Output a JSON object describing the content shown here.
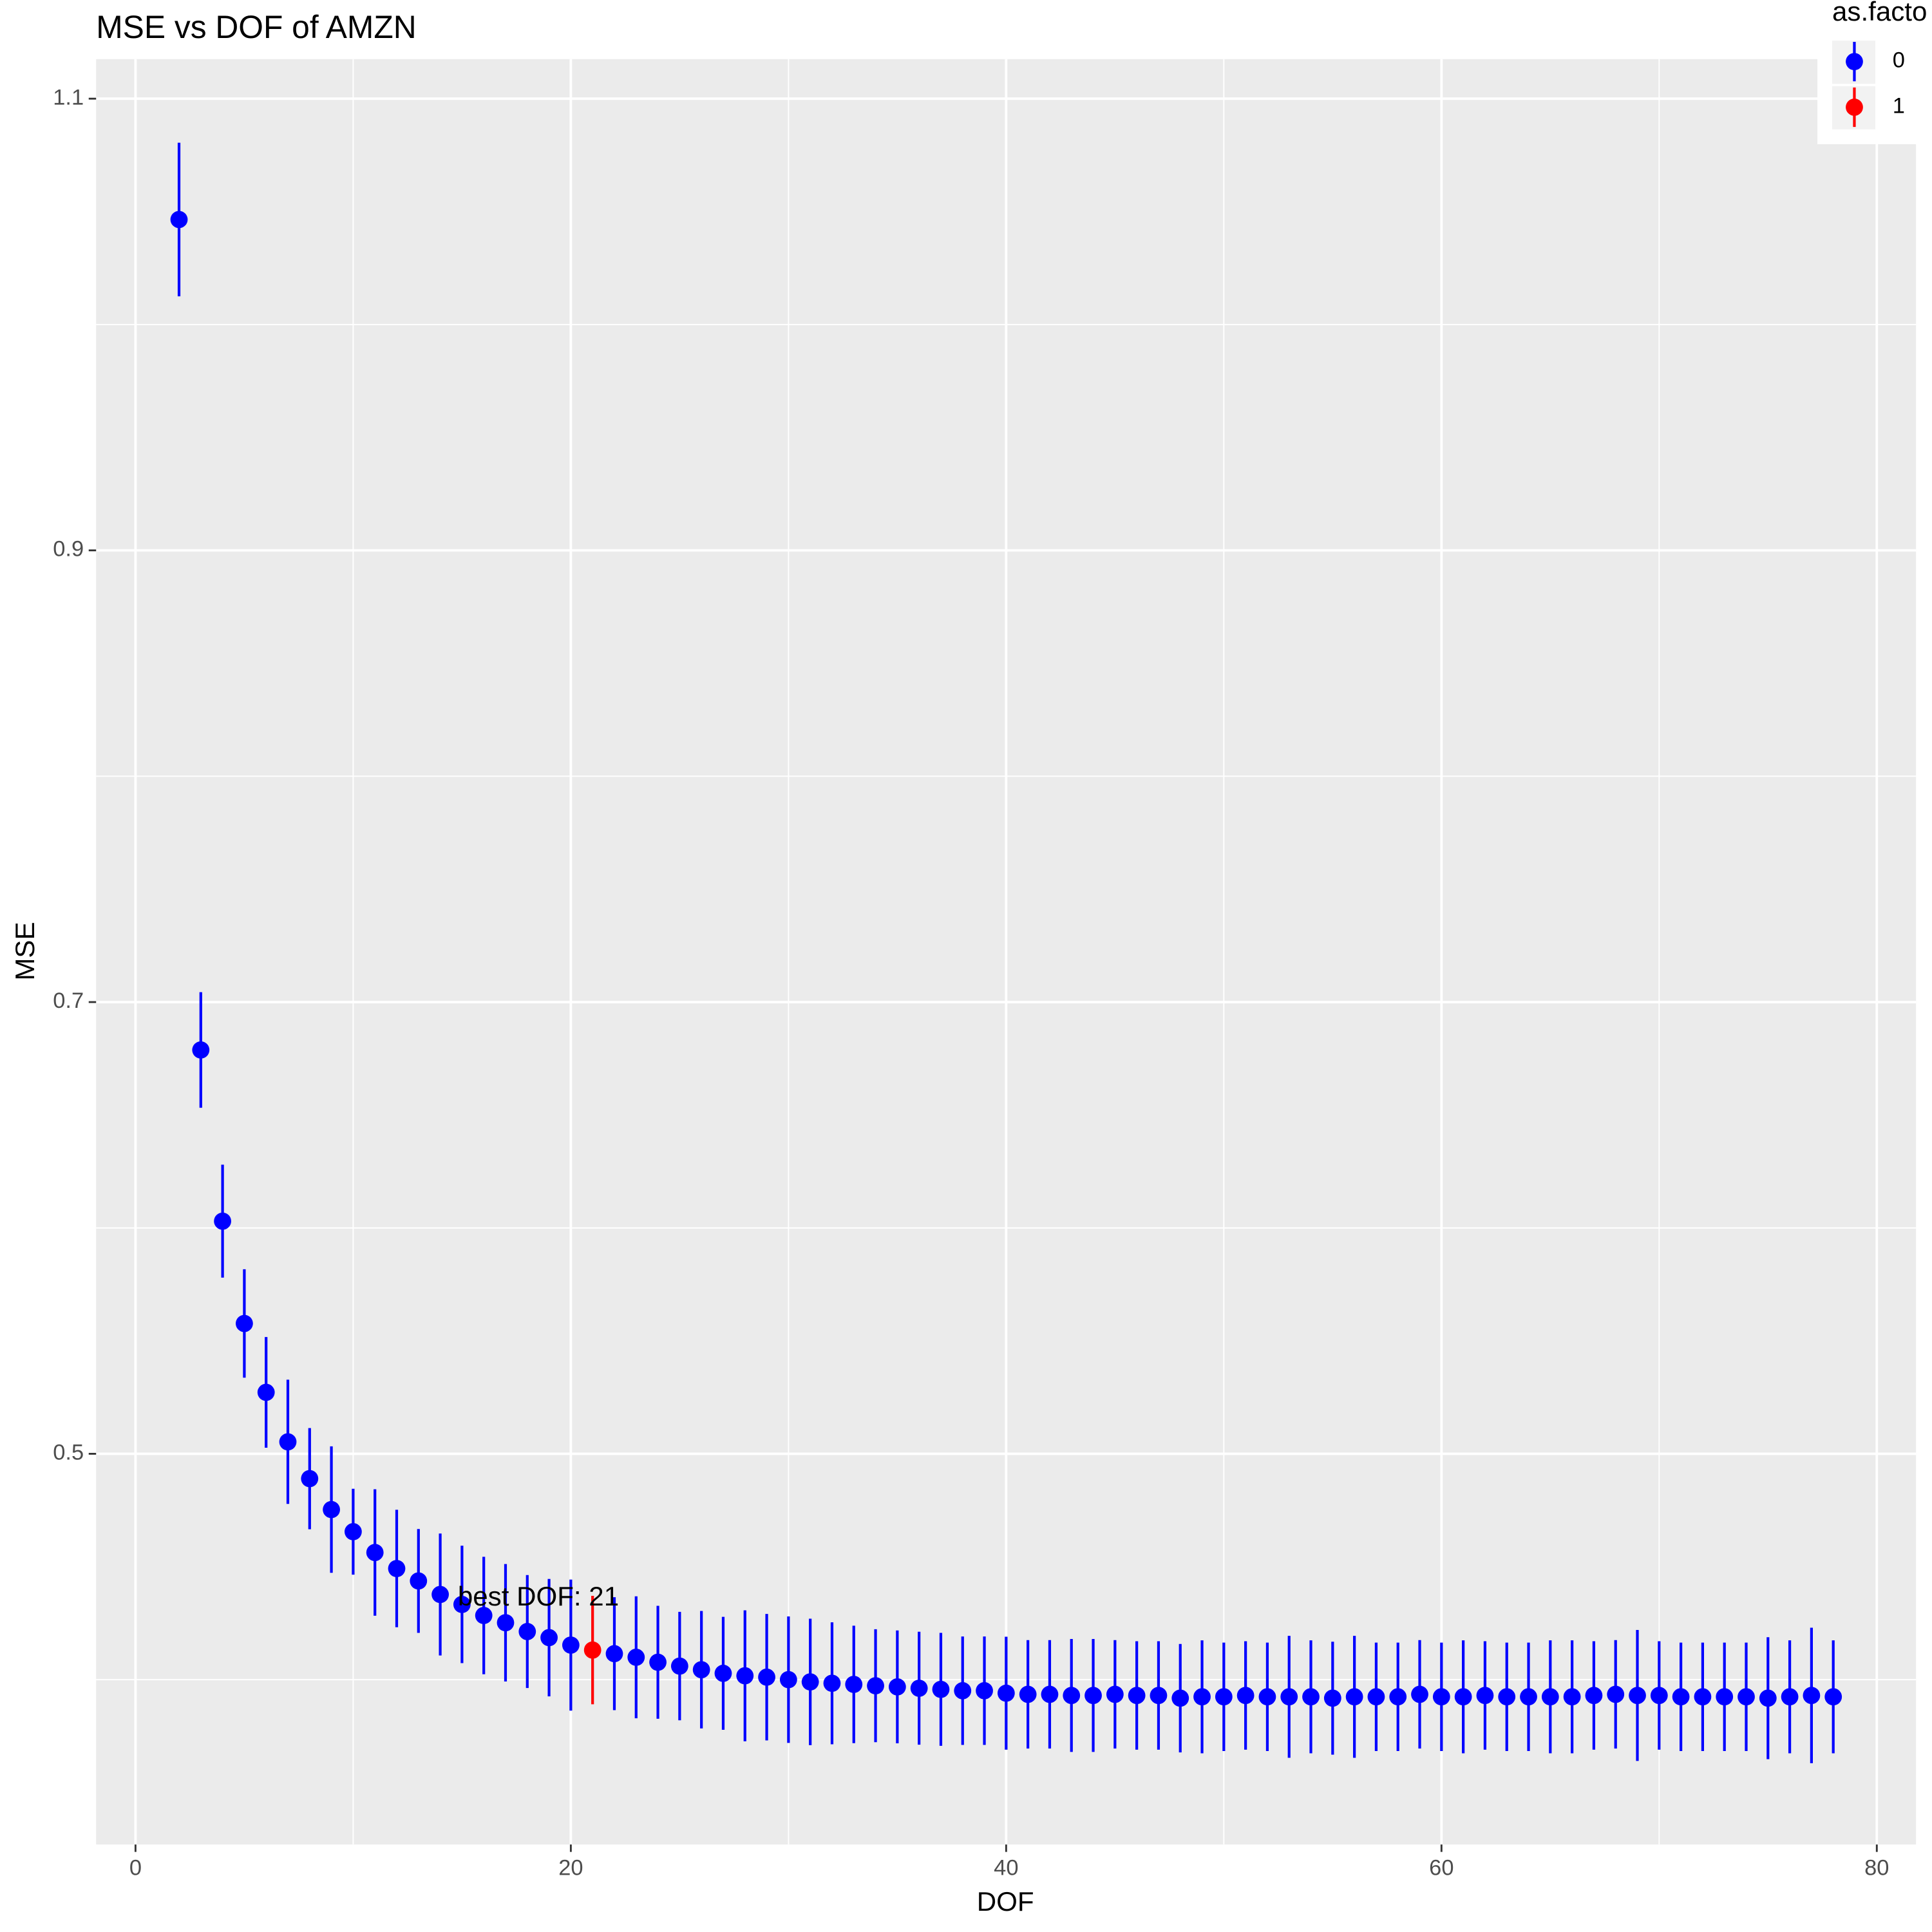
{
  "chart_data": {
    "type": "errorbar-scatter",
    "title": "MSE vs DOF of  AMZN",
    "x_label": "DOF",
    "y_label": "MSE",
    "legend_title": "as.facto",
    "annotation": "best DOF: 21",
    "xlim": [
      -1.81,
      81.8
    ],
    "ylim": [
      0.327,
      1.1175
    ],
    "xticks": [
      0,
      20,
      40,
      60,
      80
    ],
    "yticks": [
      0.5,
      0.7,
      0.9,
      1.1
    ],
    "grid": true,
    "series": [
      {
        "name": "0",
        "color": "#0000ff",
        "x": [
          2,
          3,
          4,
          5,
          6,
          7,
          8,
          9,
          10,
          11,
          12,
          13,
          14,
          15,
          16,
          17,
          18,
          19,
          20,
          22,
          23,
          24,
          25,
          26,
          27,
          28,
          29,
          30,
          31,
          32,
          33,
          34,
          35,
          36,
          37,
          38,
          39,
          40,
          41,
          42,
          43,
          44,
          45,
          46,
          47,
          48,
          49,
          50,
          51,
          52,
          53,
          54,
          55,
          56,
          57,
          58,
          59,
          60,
          61,
          62,
          63,
          64,
          65,
          66,
          67,
          68,
          69,
          70,
          71,
          72,
          73,
          74,
          75,
          76,
          77,
          78
        ],
        "values": [
          1.0465,
          0.6788,
          0.603,
          0.5577,
          0.5272,
          0.5053,
          0.489,
          0.4753,
          0.4655,
          0.4563,
          0.4492,
          0.4437,
          0.4377,
          0.4333,
          0.4284,
          0.4252,
          0.4213,
          0.4186,
          0.4153,
          0.4115,
          0.4099,
          0.4077,
          0.406,
          0.4044,
          0.4028,
          0.4017,
          0.4011,
          0.4,
          0.399,
          0.3984,
          0.3979,
          0.3973,
          0.3968,
          0.3962,
          0.3957,
          0.3951,
          0.3951,
          0.394,
          0.3935,
          0.3935,
          0.393,
          0.393,
          0.3935,
          0.393,
          0.393,
          0.3918,
          0.3924,
          0.3924,
          0.393,
          0.3924,
          0.3924,
          0.3924,
          0.3918,
          0.3924,
          0.3924,
          0.3924,
          0.3935,
          0.3924,
          0.3924,
          0.393,
          0.3924,
          0.3924,
          0.3924,
          0.3924,
          0.393,
          0.3935,
          0.393,
          0.393,
          0.3924,
          0.3924,
          0.3924,
          0.3924,
          0.3918,
          0.3924,
          0.393,
          0.3924
        ],
        "errors": [
          0.034,
          0.0256,
          0.025,
          0.024,
          0.0245,
          0.0275,
          0.0224,
          0.028,
          0.019,
          0.028,
          0.026,
          0.023,
          0.027,
          0.026,
          0.026,
          0.026,
          0.025,
          0.026,
          0.029,
          0.025,
          0.027,
          0.025,
          0.024,
          0.026,
          0.025,
          0.029,
          0.028,
          0.028,
          0.028,
          0.027,
          0.026,
          0.025,
          0.025,
          0.025,
          0.025,
          0.024,
          0.024,
          0.025,
          0.024,
          0.024,
          0.025,
          0.025,
          0.024,
          0.024,
          0.024,
          0.024,
          0.025,
          0.024,
          0.024,
          0.024,
          0.027,
          0.025,
          0.025,
          0.027,
          0.024,
          0.024,
          0.024,
          0.024,
          0.025,
          0.024,
          0.024,
          0.024,
          0.025,
          0.025,
          0.024,
          0.024,
          0.029,
          0.024,
          0.024,
          0.024,
          0.024,
          0.024,
          0.027,
          0.025,
          0.03,
          0.025
        ]
      },
      {
        "name": "1",
        "color": "#ff0000",
        "x": [
          21
        ],
        "values": [
          0.4131
        ],
        "errors": [
          0.024
        ]
      }
    ]
  }
}
